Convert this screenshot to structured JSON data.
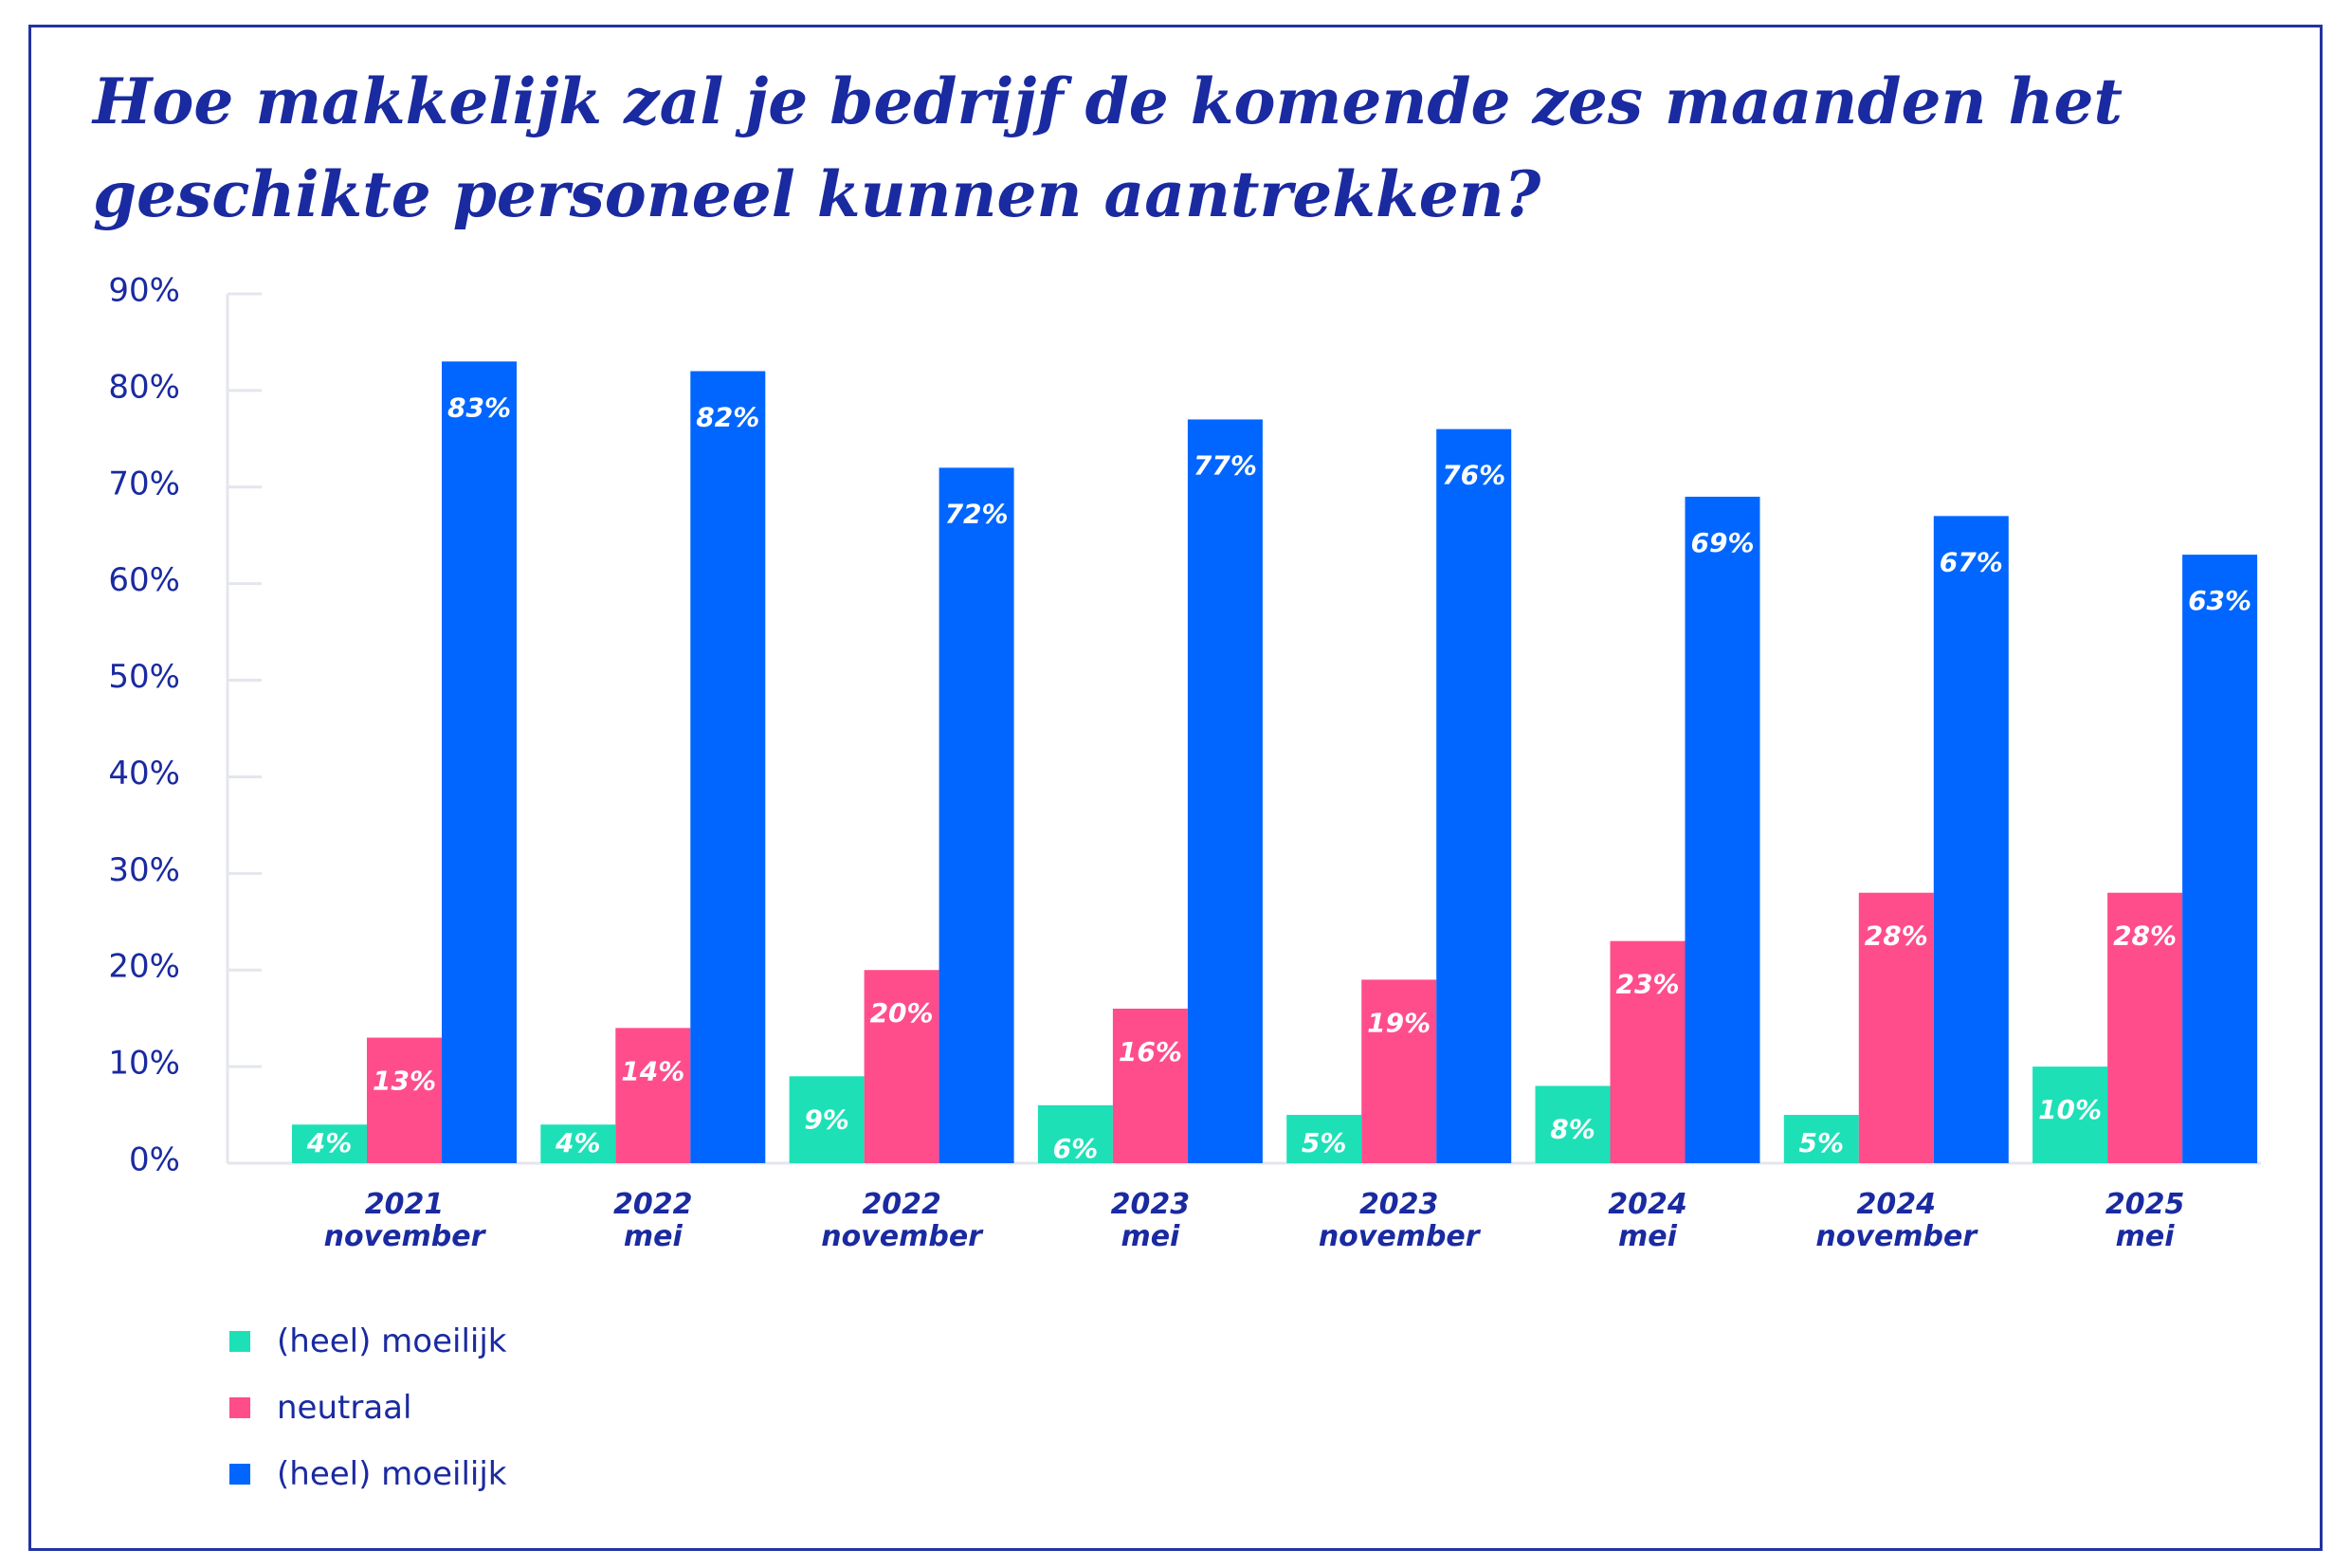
{
  "title": "Hoe makkelijk zal je bedrijf de komende zes maanden het geschikte personeel kunnen aantrekken?",
  "colors": {
    "text": "#1a2aa0",
    "axis": "#e4e6ee",
    "frame": "#2233a3"
  },
  "chart_data": {
    "type": "bar",
    "ylim": [
      0,
      90
    ],
    "y_ticks": [
      "0%",
      "10%",
      "20%",
      "30%",
      "40%",
      "50%",
      "60%",
      "70%",
      "80%",
      "90%"
    ],
    "categories": [
      [
        "2021",
        "november"
      ],
      [
        "2022",
        "mei"
      ],
      [
        "2022",
        "november"
      ],
      [
        "2023",
        "mei"
      ],
      [
        "2023",
        "november"
      ],
      [
        "2024",
        "mei"
      ],
      [
        "2024",
        "november"
      ],
      [
        "2025",
        "mei"
      ]
    ],
    "series": [
      {
        "name": "(heel) moeilijk",
        "color": "#1de0b7",
        "values": [
          4,
          4,
          9,
          6,
          5,
          8,
          5,
          10
        ],
        "labels": [
          "4%",
          "4%",
          "9%",
          "6%",
          "5%",
          "8%",
          "5%",
          "10%"
        ]
      },
      {
        "name": "neutraal",
        "color": "#ff4d8b",
        "values": [
          13,
          14,
          20,
          16,
          19,
          23,
          28,
          28
        ],
        "labels": [
          "13%",
          "14%",
          "20%",
          "16%",
          "19%",
          "23%",
          "28%",
          "28%"
        ]
      },
      {
        "name": "(heel) moeilijk",
        "color": "#0066ff",
        "values": [
          83,
          82,
          72,
          77,
          76,
          69,
          67,
          63
        ],
        "labels": [
          "83%",
          "82%",
          "72%",
          "77%",
          "76%",
          "69%",
          "67%",
          "63%"
        ]
      }
    ],
    "legend_position": "bottom-left",
    "grid": false
  }
}
